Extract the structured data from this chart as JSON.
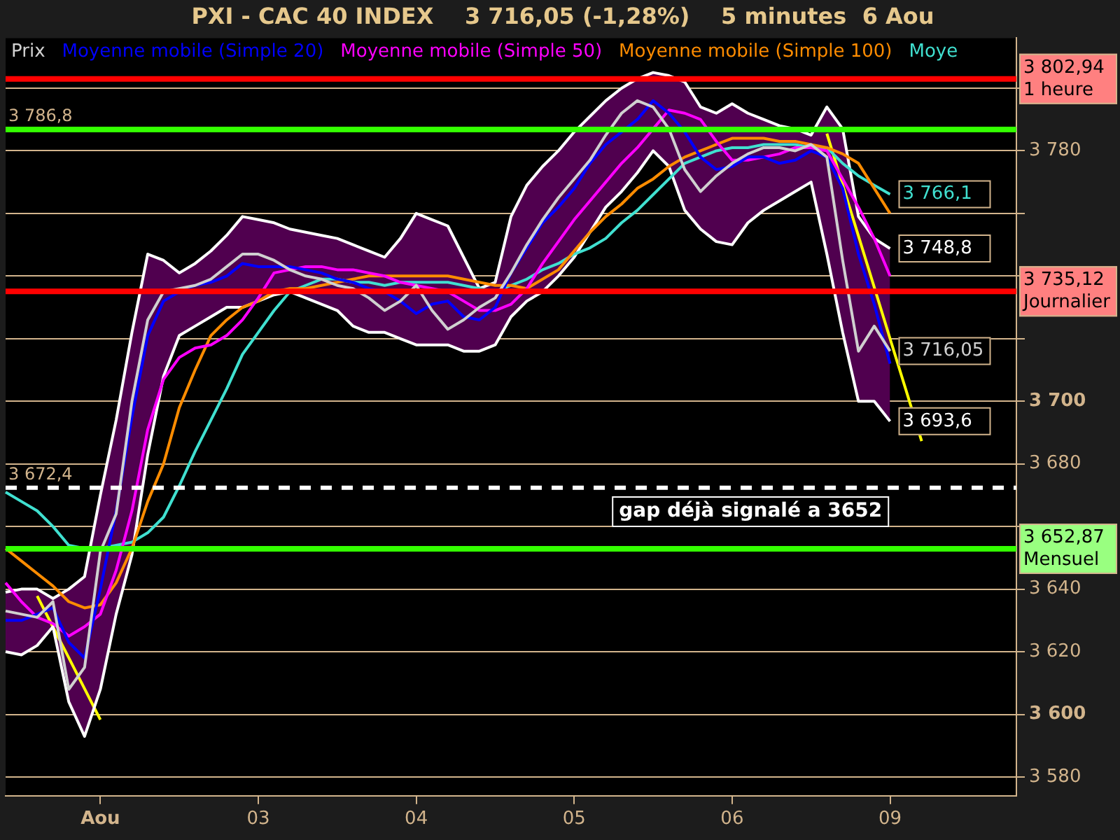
{
  "chart_data": {
    "type": "line",
    "title": "PXI - CAC 40 INDEX    3 716,05 (-1,28%)    5 minutes  6 Aou",
    "categories": [
      null,
      null,
      null,
      null,
      null,
      null,
      "Aou",
      null,
      null,
      null,
      null,
      null,
      null,
      null,
      null,
      null,
      "03",
      null,
      null,
      null,
      null,
      null,
      null,
      null,
      null,
      null,
      "04",
      null,
      null,
      null,
      null,
      null,
      null,
      null,
      null,
      null,
      "05",
      null,
      null,
      null,
      null,
      null,
      null,
      null,
      null,
      null,
      "06",
      null,
      null,
      null,
      null,
      null,
      null,
      null,
      null,
      null,
      "09",
      null,
      null,
      null,
      null,
      null,
      null,
      null,
      null
    ],
    "ylim": [
      3574,
      3816
    ],
    "yticks": [
      {
        "value": 3580,
        "label": "3 580"
      },
      {
        "value": 3600,
        "label": "3 600"
      },
      {
        "value": 3620,
        "label": "3 620"
      },
      {
        "value": 3640,
        "label": "3 640"
      },
      {
        "value": 3660,
        "label": null
      },
      {
        "value": 3680,
        "label": "3 680"
      },
      {
        "value": 3700,
        "label": "3 700"
      },
      {
        "value": 3720,
        "label": null
      },
      {
        "value": 3740,
        "label": null
      },
      {
        "value": 3760,
        "label": null
      },
      {
        "value": 3780,
        "label": "3 780"
      },
      {
        "value": 3800,
        "label": null
      }
    ],
    "grid": "y",
    "legend": "top left",
    "series": [
      {
        "name": "Prix",
        "color": "#d0d0d0",
        "values": [
          3633,
          3632,
          3631,
          3636,
          3608,
          3615,
          3652,
          3664,
          3700,
          3726,
          3735,
          3736,
          3737,
          3739,
          3743,
          3747,
          3747,
          3745,
          3742,
          3740,
          3739,
          3737,
          3736,
          3733,
          3729,
          3732,
          3737,
          3729,
          3723,
          3726,
          3730,
          3733,
          3741,
          3750,
          3758,
          3765,
          3771,
          3777,
          3785,
          3792,
          3796,
          3794,
          3787,
          3774,
          3767,
          3772,
          3776,
          3779,
          3781,
          3781,
          3780,
          3782,
          3778,
          3745,
          3716,
          3724,
          3716.05,
          null,
          null,
          null,
          null,
          null,
          null,
          null,
          null
        ],
        "value_labels": [
          null,
          null,
          null,
          null,
          null,
          null,
          null,
          null,
          null,
          null,
          null,
          null,
          null,
          null,
          null,
          null,
          null,
          null,
          null,
          null,
          null,
          null,
          null,
          null,
          null,
          null,
          null,
          null,
          null,
          null,
          null,
          null,
          null,
          null,
          null,
          null,
          null,
          null,
          null,
          null,
          null,
          null,
          null,
          null,
          null,
          null,
          null,
          null,
          null,
          null,
          null,
          null,
          null,
          null,
          null,
          null,
          "3 716,05",
          null,
          null,
          null,
          null,
          null,
          null,
          null,
          null
        ]
      },
      {
        "name": "Moyenne mobile (Simple 20)",
        "color": "#0000ff",
        "values": [
          3630,
          3630,
          3632,
          3634,
          3623,
          3618,
          3640,
          3665,
          3695,
          3721,
          3732,
          3735,
          3737,
          3738,
          3740,
          3744,
          3743,
          3743,
          3743,
          3742,
          3741,
          3739,
          3738,
          3736,
          3735,
          3732,
          3728,
          3731,
          3732,
          3727,
          3726,
          3730,
          3741,
          3749,
          3757,
          3762,
          3768,
          3776,
          3782,
          3786,
          3790,
          3796,
          3792,
          3786,
          3778,
          3774,
          3775,
          3778,
          3778,
          3776,
          3777,
          3780,
          3778,
          3768,
          3747,
          3731,
          3712,
          null,
          null,
          null,
          null,
          null,
          null,
          null,
          null
        ],
        "upper": [
          3639,
          3640,
          3640,
          3637,
          3640,
          3644,
          3670,
          3694,
          3722,
          3747,
          3745,
          3741,
          3744,
          3748,
          3753,
          3759,
          3758,
          3757,
          3755,
          3754,
          3753,
          3752,
          3750,
          3748,
          3746,
          3752,
          3760,
          3758,
          3756,
          3746,
          3736,
          3738,
          3759,
          3769,
          3775,
          3780,
          3786,
          3791,
          3796,
          3800,
          3803,
          3805,
          3804,
          3802,
          3794,
          3792,
          3795,
          3792,
          3790,
          3788,
          3787,
          3785,
          3794,
          3787,
          3759,
          3752,
          3748.8,
          null,
          null,
          null,
          null,
          null,
          null,
          null,
          null
        ],
        "lower": [
          3620,
          3619,
          3622,
          3628,
          3604,
          3593,
          3608,
          3632,
          3651,
          3683,
          3708,
          3721,
          3724,
          3727,
          3730,
          3730,
          3732,
          3734,
          3735,
          3733,
          3731,
          3729,
          3724,
          3722,
          3722,
          3720,
          3718,
          3718,
          3718,
          3716,
          3716,
          3718,
          3727,
          3732,
          3735,
          3740,
          3746,
          3754,
          3762,
          3767,
          3773,
          3780,
          3775,
          3761,
          3755,
          3751,
          3750,
          3757,
          3761,
          3764,
          3767,
          3770,
          3747,
          3722,
          3700,
          3700,
          3693.6,
          null,
          null,
          null,
          null,
          null,
          null,
          null,
          null
        ]
      },
      {
        "name": "Moyenne mobile (Simple 50)",
        "color": "#ff00ff",
        "values": [
          3642,
          3636,
          3631,
          3629,
          3625,
          3628,
          3632,
          3646,
          3665,
          3691,
          3707,
          3714,
          3717,
          3718,
          3721,
          3726,
          3733,
          3741,
          3742,
          3743,
          3743,
          3742,
          3742,
          3741,
          3740,
          3738,
          3737,
          3736,
          3735,
          3732,
          3729,
          3729,
          3731,
          3736,
          3744,
          3751,
          3758,
          3764,
          3770,
          3776,
          3781,
          3787,
          3793,
          3792,
          3790,
          3783,
          3777,
          3777,
          3778,
          3779,
          3781,
          3781,
          3780,
          3771,
          3762,
          3752,
          3740,
          null,
          null,
          null,
          null,
          null,
          null,
          null,
          null
        ]
      },
      {
        "name": "Moyenne mobile (Simple 100)",
        "color": "#ff8c00",
        "values": [
          3653,
          3649,
          3645,
          3641,
          3636,
          3634,
          3635,
          3642,
          3653,
          3668,
          3680,
          3698,
          3710,
          3721,
          3726,
          3730,
          3732,
          3735,
          3736,
          3736,
          3737,
          3738,
          3739,
          3740,
          3740,
          3740,
          3740,
          3740,
          3740,
          3739,
          3738,
          3737,
          3737,
          3736,
          3739,
          3742,
          3748,
          3754,
          3759,
          3763,
          3768,
          3771,
          3775,
          3778,
          3780,
          3782,
          3784,
          3784,
          3784,
          3783,
          3783,
          3782,
          3781,
          3779,
          3776,
          3768,
          3760,
          null,
          null,
          null,
          null,
          null,
          null,
          null,
          null
        ]
      },
      {
        "name": "Moye",
        "color": "#40e0d0",
        "values": [
          3671,
          3668,
          3665,
          3660,
          3654,
          3653,
          3653,
          3654,
          3655,
          3658,
          3663,
          3673,
          3684,
          3694,
          3704,
          3715,
          3722,
          3729,
          3735,
          3737,
          3739,
          3739,
          3738,
          3738,
          3737,
          3738,
          3738,
          3738,
          3738,
          3737,
          3736,
          3735,
          3737,
          3739,
          3742,
          3744,
          3747,
          3749,
          3752,
          3757,
          3761,
          3766,
          3771,
          3776,
          3778,
          3780,
          3781,
          3781,
          3782,
          3782,
          3782,
          3781,
          3781,
          3776,
          3772,
          3769,
          3766.1,
          null,
          null,
          null,
          null,
          null,
          null,
          null,
          null
        ],
        "value_labels": [
          null,
          null,
          null,
          null,
          null,
          null,
          null,
          null,
          null,
          null,
          null,
          null,
          null,
          null,
          null,
          null,
          null,
          null,
          null,
          null,
          null,
          null,
          null,
          null,
          null,
          null,
          null,
          null,
          null,
          null,
          null,
          null,
          null,
          null,
          null,
          null,
          null,
          null,
          null,
          null,
          null,
          null,
          null,
          null,
          null,
          null,
          null,
          null,
          null,
          null,
          null,
          null,
          null,
          null,
          null,
          null,
          "3 766,1",
          null,
          null,
          null,
          null,
          null,
          null,
          null,
          null
        ]
      },
      {
        "color": "#ffffff",
        "values": [
          3639,
          3640,
          3640,
          3637,
          3640,
          3644,
          3670,
          3694,
          3722,
          3747,
          3745,
          3741,
          3744,
          3748,
          3753,
          3759,
          3758,
          3757,
          3755,
          3754,
          3753,
          3752,
          3750,
          3748,
          3746,
          3752,
          3760,
          3758,
          3756,
          3746,
          3736,
          3738,
          3759,
          3769,
          3775,
          3780,
          3786,
          3791,
          3796,
          3800,
          3803,
          3805,
          3804,
          3802,
          3794,
          3792,
          3795,
          3792,
          3790,
          3788,
          3787,
          3785,
          3794,
          3787,
          3759,
          3752,
          3748.8,
          null,
          null,
          null,
          null,
          null,
          null,
          null,
          null
        ]
      },
      {
        "color": "#ffffff",
        "values": [
          3620,
          3619,
          3622,
          3628,
          3604,
          3593,
          3608,
          3632,
          3651,
          3683,
          3708,
          3721,
          3724,
          3727,
          3730,
          3730,
          3732,
          3734,
          3735,
          3733,
          3731,
          3729,
          3724,
          3722,
          3722,
          3720,
          3718,
          3718,
          3718,
          3716,
          3716,
          3718,
          3727,
          3732,
          3735,
          3740,
          3746,
          3754,
          3762,
          3767,
          3773,
          3780,
          3775,
          3761,
          3755,
          3751,
          3750,
          3757,
          3761,
          3764,
          3767,
          3770,
          3747,
          3722,
          3700,
          3700,
          3693.6,
          null,
          null,
          null,
          null,
          null,
          null,
          null,
          null
        ]
      },
      {
        "color": "#ffff00",
        "values": [
          null,
          null,
          null,
          null,
          null,
          null,
          null,
          null,
          null,
          null,
          null,
          null,
          null,
          null,
          null,
          null,
          null,
          null,
          null,
          null,
          null,
          null,
          null,
          null,
          null,
          null,
          null,
          null,
          null,
          null,
          null,
          null,
          null,
          null,
          null,
          null,
          null,
          null,
          null,
          null,
          null,
          null,
          null,
          null,
          null,
          null,
          null,
          null,
          null,
          null,
          null,
          null,
          3785.5,
          3769.1,
          3752.8,
          3736.4,
          3720,
          3703.7,
          3687.3,
          null,
          null,
          null,
          null,
          null,
          null
        ]
      },
      {
        "color": "#ffff00",
        "values": [
          null,
          null,
          3637.8,
          3627.9,
          3618.1,
          3608.2,
          3598.3,
          null,
          null,
          null,
          null,
          null,
          null,
          null,
          null,
          null,
          null,
          null,
          null,
          null,
          null,
          null,
          null,
          null,
          null,
          null,
          null,
          null,
          null,
          null,
          null,
          null,
          null,
          null,
          null,
          null,
          null,
          null,
          null,
          null,
          null,
          null,
          null,
          null,
          null,
          null,
          null,
          null,
          null,
          null,
          null,
          null,
          null,
          null,
          null,
          null,
          null,
          null,
          null,
          null,
          null,
          null,
          null,
          null,
          null
        ]
      }
    ],
    "ref_lines": [
      {
        "axis": "y",
        "value": 3802.94,
        "label": "3 802,94\n1 heure",
        "color": "#ff0000"
      },
      {
        "axis": "y",
        "value": 3786.8,
        "label": "3 786,8",
        "color": "#33ff00"
      },
      {
        "axis": "y",
        "value": 3735.12,
        "label": "3 735,12\nJournalier",
        "color": "#ff0000"
      },
      {
        "axis": "y",
        "value": 3672.4,
        "label": "3 672,4",
        "color": "#ffffff",
        "line_style": "dashed"
      },
      {
        "axis": "y",
        "value": 3652.87,
        "label": "3 652,87\nMensuel",
        "color": "#33ff00"
      }
    ],
    "annotations": [
      "gap déjà signalé a 3652",
      {
        "text": "3 748,8",
        "x": "09",
        "y": 3748.8
      },
      {
        "text": "3 693,6",
        "x": "09",
        "y": 3693.6
      }
    ]
  }
}
